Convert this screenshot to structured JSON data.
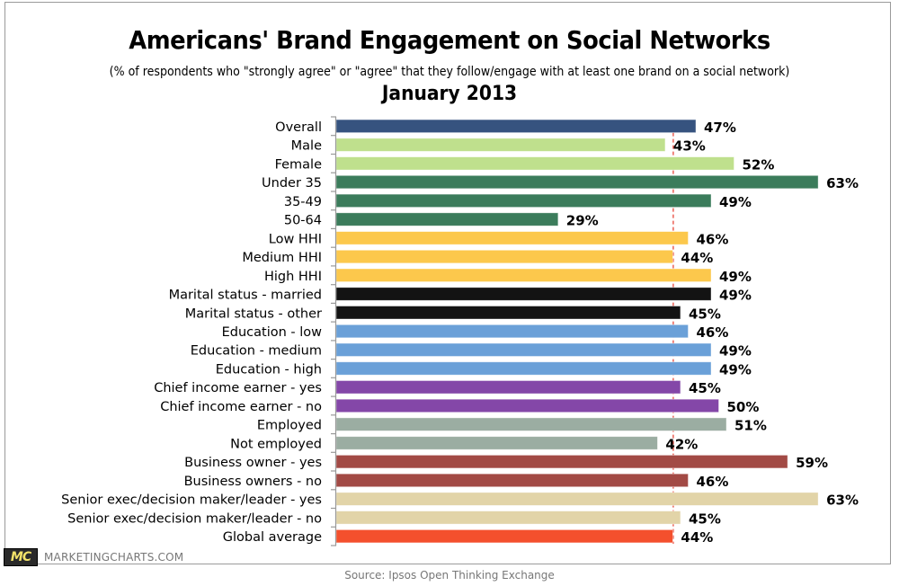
{
  "header": {
    "title": "Americans' Brand Engagement on Social Networks",
    "subtitle": "(% of respondents who \"strongly agree\" or \"agree\" that they follow/engage with at least one brand on a social network)",
    "period": "January 2013"
  },
  "footer": {
    "logo_mark": "MC",
    "logo_text": "MARKETINGCHARTS.COM",
    "source": "Source: Ipsos Open Thinking Exchange"
  },
  "chart_data": {
    "type": "bar",
    "orientation": "horizontal",
    "title": "Americans' Brand Engagement on Social Networks",
    "subtitle": "(% of respondents who \"strongly agree\" or \"agree\" that they follow/engage with at least one brand on a social network)",
    "xlabel": "",
    "ylabel": "",
    "xlim": [
      0,
      65
    ],
    "unit": "%",
    "grid": false,
    "reference_line": {
      "label": "Global average",
      "value": 44,
      "color": "#e8463a",
      "style": "dashed"
    },
    "categories": [
      "Overall",
      "Male",
      "Female",
      "Under 35",
      "35-49",
      "50-64",
      "Low HHI",
      "Medium HHI",
      "High HHI",
      "Marital status - married",
      "Marital status - other",
      "Education - low",
      "Education - medium",
      "Education - high",
      "Chief income earner - yes",
      "Chief income earner - no",
      "Employed",
      "Not employed",
      "Business owner - yes",
      "Business owners - no",
      "Senior exec/decision maker/leader - yes",
      "Senior exec/decision maker/leader - no",
      "Global average"
    ],
    "values": [
      47,
      43,
      52,
      63,
      49,
      29,
      46,
      44,
      49,
      49,
      45,
      46,
      49,
      49,
      45,
      50,
      51,
      42,
      59,
      46,
      63,
      45,
      44
    ],
    "value_labels": [
      "47%",
      "43%",
      "52%",
      "63%",
      "49%",
      "29%",
      "46%",
      "44%",
      "49%",
      "49%",
      "45%",
      "46%",
      "49%",
      "49%",
      "45%",
      "50%",
      "51%",
      "42%",
      "59%",
      "46%",
      "63%",
      "45%",
      "44%"
    ],
    "colors": [
      "#36537f",
      "#bfe08d",
      "#bfe08d",
      "#3b7c5b",
      "#3b7c5b",
      "#3b7c5b",
      "#fcc84c",
      "#fcc84c",
      "#fcc84c",
      "#131313",
      "#131313",
      "#6aa0d8",
      "#6aa0d8",
      "#6aa0d8",
      "#8447a8",
      "#8447a8",
      "#9bada2",
      "#9bada2",
      "#a24a45",
      "#a24a45",
      "#e2d4a8",
      "#e2d4a8",
      "#f4502d"
    ]
  }
}
